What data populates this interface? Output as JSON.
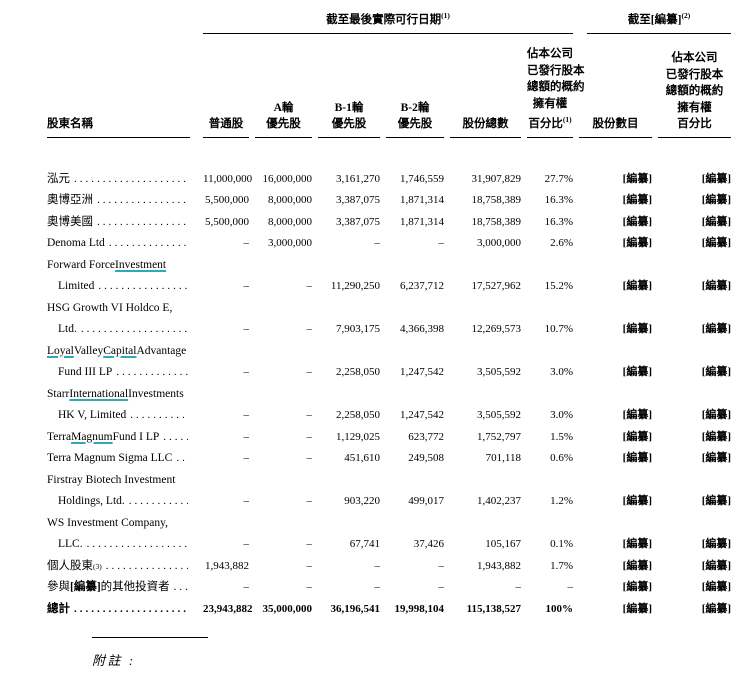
{
  "colors": {
    "highlight_underline": "#2fa9b6",
    "text": "#000000"
  },
  "page": {
    "footnote_label": "附註 :"
  },
  "table": {
    "group_headers": [
      {
        "name": "as-of-latest-practicable-date",
        "segments": [
          {
            "t": "截至最後實際可行日期"
          },
          {
            "t": "(1)",
            "s": true
          }
        ]
      },
      {
        "name": "as-of-redacted",
        "segments": [
          {
            "t": "截至"
          },
          {
            "t": "[編纂]"
          },
          {
            "t": "(2)",
            "s": true
          }
        ]
      }
    ],
    "columns": [
      {
        "key": "shareholder",
        "lines": [
          [
            {
              "t": "股東名稱"
            }
          ]
        ]
      },
      {
        "key": "ordinary",
        "lines": [
          [
            {
              "t": "普通股"
            }
          ]
        ]
      },
      {
        "key": "series_a",
        "lines": [
          [
            {
              "t": "A輪"
            }
          ],
          [
            {
              "t": "優先股"
            }
          ]
        ]
      },
      {
        "key": "series_b1",
        "lines": [
          [
            {
              "t": "B-1輪"
            }
          ],
          [
            {
              "t": "優先股"
            }
          ]
        ]
      },
      {
        "key": "series_b2",
        "lines": [
          [
            {
              "t": "B-2輪"
            }
          ],
          [
            {
              "t": "優先股"
            }
          ]
        ]
      },
      {
        "key": "total_shares",
        "lines": [
          [
            {
              "t": "股份總數"
            }
          ]
        ]
      },
      {
        "key": "pct_now",
        "lines": [
          [
            {
              "t": "佔本公司"
            }
          ],
          [
            {
              "t": "已發行股本"
            }
          ],
          [
            {
              "t": "總額的概約"
            }
          ],
          [
            {
              "t": "擁有權"
            }
          ],
          [
            {
              "t": "百分比"
            },
            {
              "t": "(1)",
              "s": true
            }
          ]
        ]
      },
      {
        "key": "shares_then",
        "lines": [
          [
            {
              "t": "股份數目"
            }
          ]
        ]
      },
      {
        "key": "pct_then",
        "lines": [
          [
            {
              "t": "佔本公司"
            }
          ],
          [
            {
              "t": "已發行股本"
            }
          ],
          [
            {
              "t": "總額的概約"
            }
          ],
          [
            {
              "t": "擁有權"
            }
          ],
          [
            {
              "t": "百分比"
            }
          ]
        ]
      }
    ],
    "rows": [
      {
        "name": [
          [
            {
              "t": "泓元"
            }
          ]
        ],
        "values": [
          "11,000,000",
          "16,000,000",
          "3,161,270",
          "1,746,559",
          "31,907,829",
          "27.7%",
          "[編纂]",
          "[編纂]"
        ]
      },
      {
        "name": [
          [
            {
              "t": "奧博亞洲"
            }
          ]
        ],
        "values": [
          "5,500,000",
          "8,000,000",
          "3,387,075",
          "1,871,314",
          "18,758,389",
          "16.3%",
          "[編纂]",
          "[編纂]"
        ]
      },
      {
        "name": [
          [
            {
              "t": "奧博美國"
            }
          ]
        ],
        "values": [
          "5,500,000",
          "8,000,000",
          "3,387,075",
          "1,871,314",
          "18,758,389",
          "16.3%",
          "[編纂]",
          "[編纂]"
        ]
      },
      {
        "name": [
          [
            {
              "t": "Denoma Ltd"
            }
          ]
        ],
        "values": [
          "–",
          "3,000,000",
          "–",
          "–",
          "3,000,000",
          "2.6%",
          "[編纂]",
          "[編纂]"
        ]
      },
      {
        "name": [
          [
            {
              "t": "Forward Force "
            },
            {
              "t": "Investment",
              "u": true
            }
          ],
          [
            {
              "t": "Limited"
            }
          ]
        ],
        "values": [
          "–",
          "–",
          "11,290,250",
          "6,237,712",
          "17,527,962",
          "15.2%",
          "[編纂]",
          "[編纂]"
        ]
      },
      {
        "name": [
          [
            {
              "t": "HSG Growth VI Holdco E,"
            }
          ],
          [
            {
              "t": "Ltd."
            }
          ]
        ],
        "values": [
          "–",
          "–",
          "7,903,175",
          "4,366,398",
          "12,269,573",
          "10.7%",
          "[編纂]",
          "[編纂]"
        ]
      },
      {
        "name": [
          [
            {
              "t": "Loyal",
              "u": true
            },
            {
              "t": " Valley "
            },
            {
              "t": "Capital",
              "u": true
            },
            {
              "t": " Advantage"
            }
          ],
          [
            {
              "t": "Fund III LP"
            }
          ]
        ],
        "values": [
          "–",
          "–",
          "2,258,050",
          "1,247,542",
          "3,505,592",
          "3.0%",
          "[編纂]",
          "[編纂]"
        ]
      },
      {
        "name": [
          [
            {
              "t": "Starr "
            },
            {
              "t": "International",
              "u": true
            },
            {
              "t": " Investments"
            }
          ],
          [
            {
              "t": "HK V, Limited"
            }
          ]
        ],
        "values": [
          "–",
          "–",
          "2,258,050",
          "1,247,542",
          "3,505,592",
          "3.0%",
          "[編纂]",
          "[編纂]"
        ]
      },
      {
        "name": [
          [
            {
              "t": "Terra "
            },
            {
              "t": "Magnum",
              "u": true
            },
            {
              "t": " Fund I LP"
            }
          ]
        ],
        "values": [
          "–",
          "–",
          "1,129,025",
          "623,772",
          "1,752,797",
          "1.5%",
          "[編纂]",
          "[編纂]"
        ]
      },
      {
        "name": [
          [
            {
              "t": "Terra Magnum Sigma LLC"
            }
          ]
        ],
        "values": [
          "–",
          "–",
          "451,610",
          "249,508",
          "701,118",
          "0.6%",
          "[編纂]",
          "[編纂]"
        ]
      },
      {
        "name": [
          [
            {
              "t": "Firstray Biotech Investment"
            }
          ],
          [
            {
              "t": "Holdings, Ltd."
            }
          ]
        ],
        "values": [
          "–",
          "–",
          "903,220",
          "499,017",
          "1,402,237",
          "1.2%",
          "[編纂]",
          "[編纂]"
        ]
      },
      {
        "name": [
          [
            {
              "t": "WS Investment Company,"
            }
          ],
          [
            {
              "t": "LLC."
            }
          ]
        ],
        "values": [
          "–",
          "–",
          "67,741",
          "37,426",
          "105,167",
          "0.1%",
          "[編纂]",
          "[編纂]"
        ]
      },
      {
        "name": [
          [
            {
              "t": "個人股東"
            },
            {
              "t": "(3)",
              "s": true
            }
          ]
        ],
        "values": [
          "1,943,882",
          "–",
          "–",
          "–",
          "1,943,882",
          "1.7%",
          "[編纂]",
          "[編纂]"
        ]
      },
      {
        "name": [
          [
            {
              "t": "參與"
            },
            {
              "t": "[編纂]",
              "b": true
            },
            {
              "t": "的其他投資者"
            }
          ]
        ],
        "values": [
          "–",
          "–",
          "–",
          "–",
          "–",
          "–",
          "[編纂]",
          "[編纂]"
        ]
      },
      {
        "total": true,
        "name": [
          [
            {
              "t": "總計"
            }
          ]
        ],
        "values": [
          "23,943,882",
          "35,000,000",
          "36,196,541",
          "19,998,104",
          "115,138,527",
          "100%",
          "[編纂]",
          "[編纂]"
        ]
      }
    ]
  }
}
